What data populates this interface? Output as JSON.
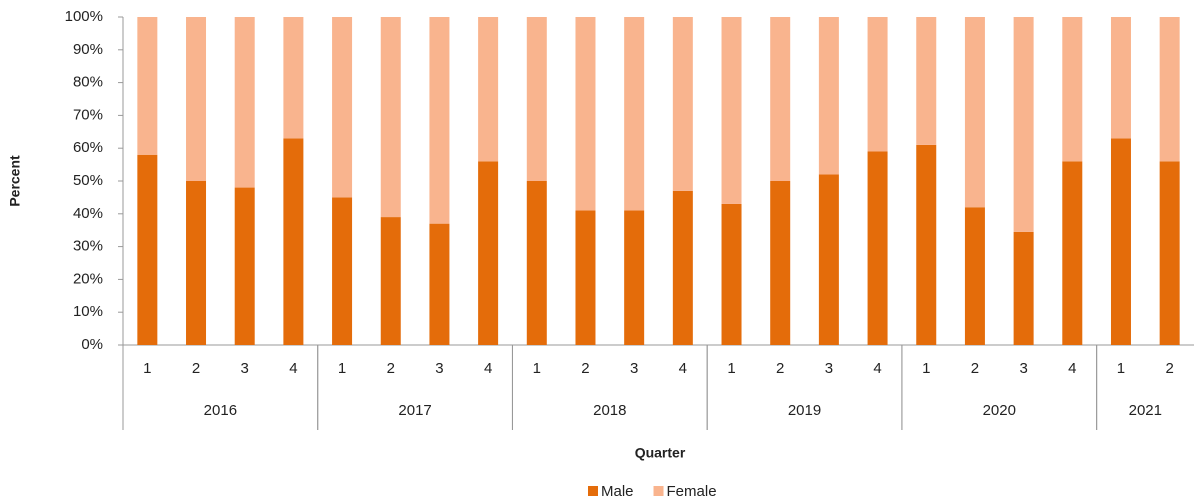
{
  "chart_data": {
    "type": "stacked_bar_100",
    "x_label": "Quarter",
    "y_label": "Percent",
    "categories": [
      "1",
      "2",
      "3",
      "4",
      "1",
      "2",
      "3",
      "4",
      "1",
      "2",
      "3",
      "4",
      "1",
      "2",
      "3",
      "4",
      "1",
      "2",
      "3",
      "4",
      "1",
      "2"
    ],
    "category_groups": [
      "2016",
      "2016",
      "2016",
      "2016",
      "2017",
      "2017",
      "2017",
      "2017",
      "2018",
      "2018",
      "2018",
      "2018",
      "2019",
      "2019",
      "2019",
      "2019",
      "2020",
      "2020",
      "2020",
      "2020",
      "2021",
      "2021"
    ],
    "series": [
      {
        "name": "Male",
        "color": "#e46c0a",
        "values": [
          58,
          50,
          48,
          63,
          45,
          39,
          37,
          56,
          50,
          41,
          41,
          47,
          43,
          50,
          52,
          59,
          61,
          42,
          34.5,
          56,
          63,
          56
        ]
      },
      {
        "name": "Female",
        "color": "#f9b48e",
        "values": [
          42,
          50,
          52,
          37,
          55,
          61,
          63,
          44,
          50,
          59,
          59,
          53,
          57,
          50,
          48,
          41,
          39,
          58,
          65.5,
          44,
          37,
          44
        ]
      }
    ],
    "ylim": [
      0,
      100
    ],
    "yticks": [
      {
        "value": 0,
        "label": "0%"
      },
      {
        "value": 10,
        "label": "10%"
      },
      {
        "value": 20,
        "label": "20%"
      },
      {
        "value": 30,
        "label": "30%"
      },
      {
        "value": 40,
        "label": "40%"
      },
      {
        "value": 50,
        "label": "50%"
      },
      {
        "value": 60,
        "label": "60%"
      },
      {
        "value": 70,
        "label": "70%"
      },
      {
        "value": 80,
        "label": "80%"
      },
      {
        "value": 90,
        "label": "90%"
      },
      {
        "value": 100,
        "label": "100%"
      }
    ],
    "grid": false,
    "legend": "bottom"
  }
}
